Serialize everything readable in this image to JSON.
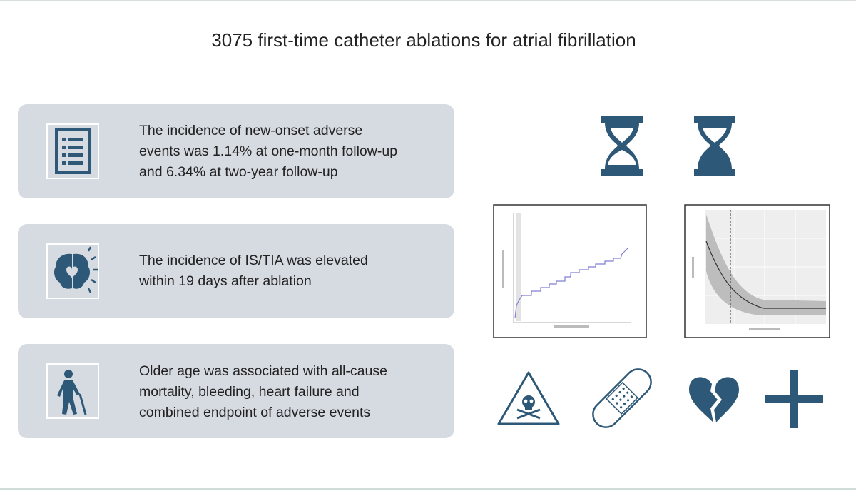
{
  "title": "3075 first-time catheter ablations for atrial fibrillation",
  "cards": [
    {
      "lines": [
        "The incidence of new-onset adverse",
        "events was 1.14% at one-month follow-up",
        "and 6.34% at two-year follow-up"
      ]
    },
    {
      "lines": [
        "The incidence of IS/TIA was elevated",
        "within 19 days after ablation"
      ]
    },
    {
      "lines": [
        "Older age was associated with all-cause",
        "mortality, bleeding, heart failure and",
        "combined endpoint of adverse events"
      ]
    }
  ]
}
